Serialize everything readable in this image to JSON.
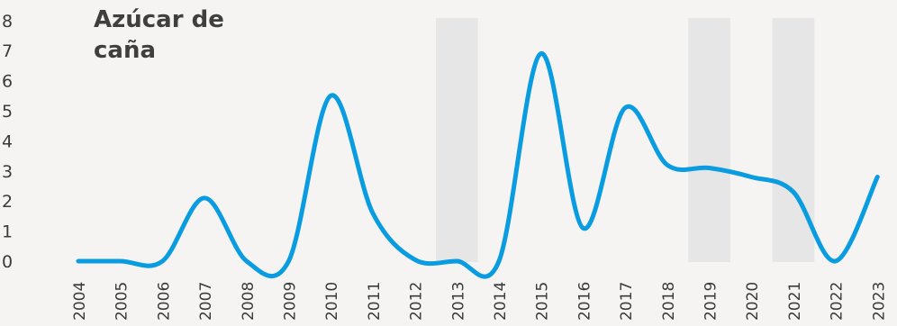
{
  "chart_data": {
    "type": "line",
    "title_lines": [
      "Azúcar de",
      "caña"
    ],
    "categories": [
      "2004",
      "2005",
      "2006",
      "2007",
      "2008",
      "2009",
      "2010",
      "2011",
      "2012",
      "2013",
      "2014",
      "2015",
      "2016",
      "2017",
      "2018",
      "2019",
      "2020",
      "2021",
      "2022",
      "2023"
    ],
    "series": [
      {
        "values": [
          0.0,
          0.0,
          0.0,
          2.1,
          0.0,
          0.0,
          5.5,
          1.6,
          0.05,
          0.0,
          0.0,
          6.9,
          1.1,
          5.1,
          3.2,
          3.1,
          2.8,
          2.3,
          0.0,
          2.8
        ],
        "color": "#0a9ce0"
      }
    ],
    "yticks": [
      0,
      1,
      2,
      3,
      4,
      5,
      6,
      7,
      8
    ],
    "ylim": [
      0,
      8
    ],
    "highlighted_years": [
      "2013",
      "2019",
      "2021"
    ],
    "highlight_color": "#e6e6e6",
    "background_color": "#f5f4f3",
    "grid": false
  }
}
